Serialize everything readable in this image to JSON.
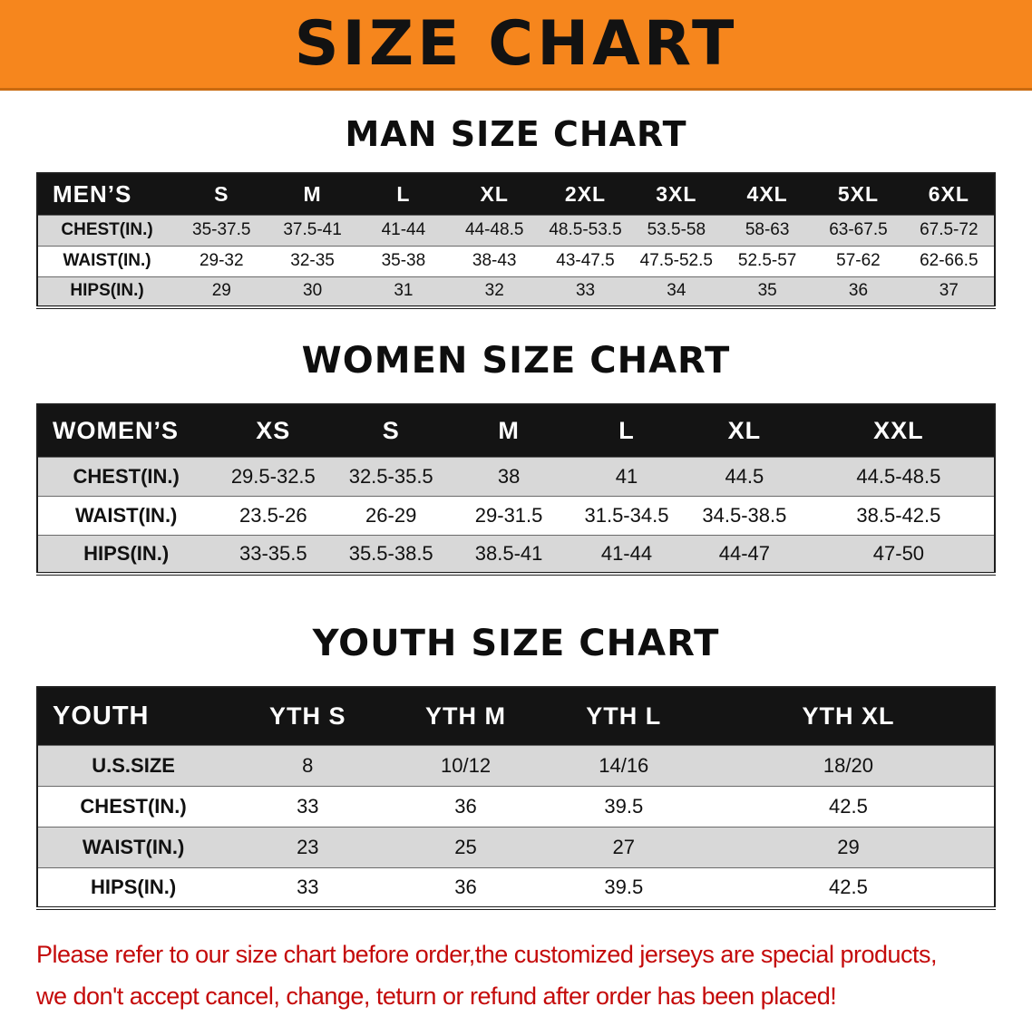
{
  "banner": {
    "title": "SIZE CHART"
  },
  "colors": {
    "banner_bg": "#F6861D",
    "header_bg": "#141414",
    "stripe": "#D8D8D8",
    "notice_red": "#C40A0A"
  },
  "sections": [
    {
      "heading": "MAN SIZE CHART",
      "table": {
        "header": [
          "MEN’S",
          "S",
          "M",
          "L",
          "XL",
          "2XL",
          "3XL",
          "4XL",
          "5XL",
          "6XL"
        ],
        "rows": [
          [
            "CHEST(IN.)",
            "35-37.5",
            "37.5-41",
            "41-44",
            "44-48.5",
            "48.5-53.5",
            "53.5-58",
            "58-63",
            "63-67.5",
            "67.5-72"
          ],
          [
            "WAIST(IN.)",
            "29-32",
            "32-35",
            "35-38",
            "38-43",
            "43-47.5",
            "47.5-52.5",
            "52.5-57",
            "57-62",
            "62-66.5"
          ],
          [
            "HIPS(IN.)",
            "29",
            "30",
            "31",
            "32",
            "33",
            "34",
            "35",
            "36",
            "37"
          ]
        ]
      }
    },
    {
      "heading": "WOMEN SIZE CHART",
      "table": {
        "header": [
          "WOMEN’S",
          "XS",
          "S",
          "M",
          "L",
          "XL",
          "XXL"
        ],
        "rows": [
          [
            "CHEST(IN.)",
            "29.5-32.5",
            "32.5-35.5",
            "38",
            "41",
            "44.5",
            "44.5-48.5"
          ],
          [
            "WAIST(IN.)",
            "23.5-26",
            "26-29",
            "29-31.5",
            "31.5-34.5",
            "34.5-38.5",
            "38.5-42.5"
          ],
          [
            "HIPS(IN.)",
            "33-35.5",
            "35.5-38.5",
            "38.5-41",
            "41-44",
            "44-47",
            "47-50"
          ]
        ]
      }
    },
    {
      "heading": "YOUTH SIZE CHART",
      "table": {
        "header": [
          "YOUTH",
          "YTH S",
          "YTH M",
          "YTH L",
          "YTH XL"
        ],
        "rows": [
          [
            "U.S.SIZE",
            "8",
            "10/12",
            "14/16",
            "18/20"
          ],
          [
            "CHEST(IN.)",
            "33",
            "36",
            "39.5",
            "42.5"
          ],
          [
            "WAIST(IN.)",
            "23",
            "25",
            "27",
            "29"
          ],
          [
            "HIPS(IN.)",
            "33",
            "36",
            "39.5",
            "42.5"
          ]
        ]
      }
    }
  ],
  "notice": {
    "line1": "Please refer to our size chart before order,the customized jerseys are special products,",
    "line2": "we don't accept cancel, change, teturn or refund after order has been placed!"
  }
}
